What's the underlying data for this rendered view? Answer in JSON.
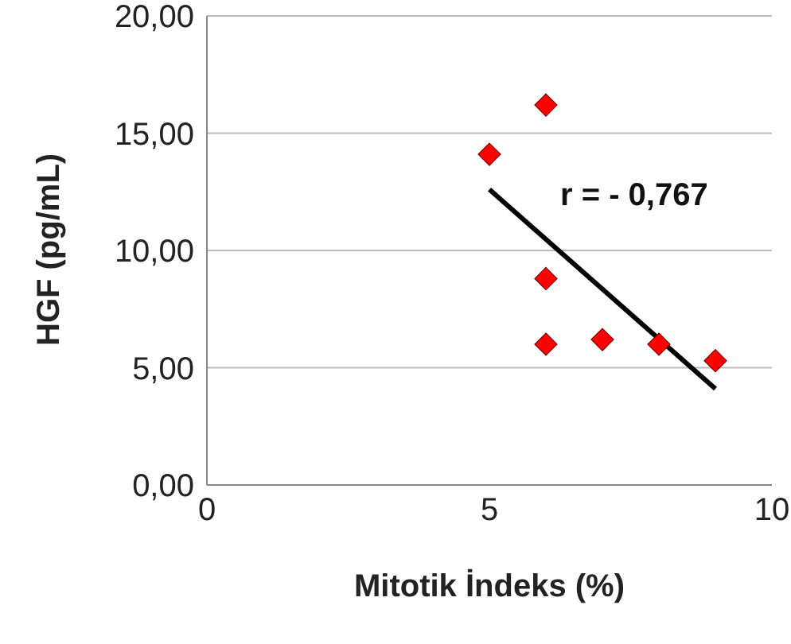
{
  "chart_data": {
    "type": "scatter",
    "xlabel": "Mitotik İndeks (%)",
    "ylabel": "HGF (pg/mL)",
    "xlim": [
      0,
      10
    ],
    "xticks": [
      0,
      5,
      10
    ],
    "ylim": [
      0,
      20
    ],
    "yticks": [
      {
        "value": 0,
        "label": "0,00"
      },
      {
        "value": 5,
        "label": "5,00"
      },
      {
        "value": 10,
        "label": "10,00"
      },
      {
        "value": 15,
        "label": "15,00"
      },
      {
        "value": 20,
        "label": "20,00"
      }
    ],
    "grid": "y",
    "series": [
      {
        "marker": "diamond",
        "color": "#ff0000",
        "x": [
          5,
          6,
          6,
          6,
          7,
          8,
          9
        ],
        "values": [
          14.1,
          16.2,
          8.8,
          6.0,
          6.2,
          6.0,
          5.3
        ]
      },
      {
        "type": "line",
        "marker": "none",
        "color": "#000000",
        "x": [
          5,
          9
        ],
        "values": [
          12.6,
          4.1
        ]
      }
    ],
    "annotations": [
      "r = - 0,767"
    ]
  }
}
